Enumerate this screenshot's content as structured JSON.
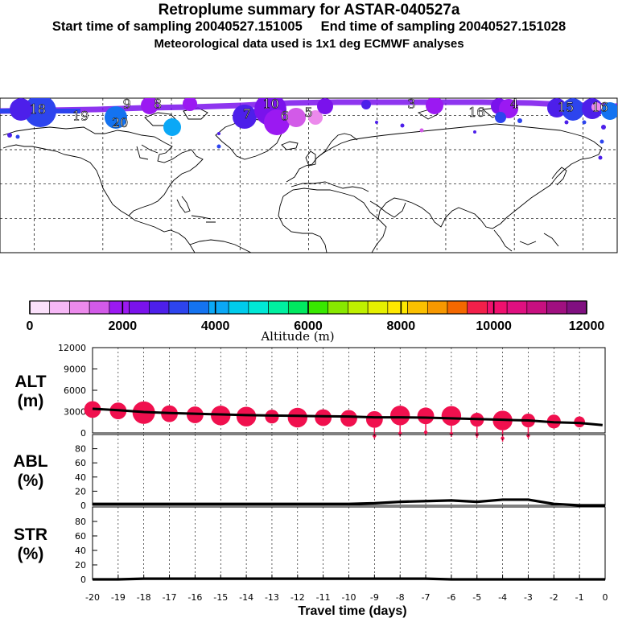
{
  "header": {
    "title": "Retroplume summary for ASTAR-040527a",
    "start_label": "Start time of sampling 20040527.151005",
    "end_label": "End time of sampling 20040527.151028",
    "met_label": "Meteorological data used is 1x1 deg ECMWF analyses"
  },
  "map": {
    "plume_labels": [
      {
        "text": "18",
        "lon": -158,
        "lat": 84
      },
      {
        "text": "19",
        "lon": -133,
        "lat": 80
      },
      {
        "text": "20",
        "lon": -110,
        "lat": 76
      },
      {
        "text": "9",
        "lon": -106,
        "lat": 87
      },
      {
        "text": "8",
        "lon": -88,
        "lat": 87
      },
      {
        "text": "7",
        "lon": -36,
        "lat": 81
      },
      {
        "text": "10",
        "lon": -22,
        "lat": 87
      },
      {
        "text": "6",
        "lon": -14,
        "lat": 80
      },
      {
        "text": "5",
        "lon": 0,
        "lat": 82
      },
      {
        "text": "3",
        "lon": 60,
        "lat": 87
      },
      {
        "text": "16",
        "lon": 98,
        "lat": 82
      },
      {
        "text": "4",
        "lon": 120,
        "lat": 87
      },
      {
        "text": "15",
        "lon": 150,
        "lat": 85
      },
      {
        "text": "16",
        "lon": 170,
        "lat": 85
      }
    ]
  },
  "colorbar": {
    "tick_labels": [
      "0",
      "2000",
      "4000",
      "6000",
      "8000",
      "10000",
      "12000"
    ],
    "axis_label": "Altitude (m)",
    "colors": [
      "#fbe1fb",
      "#f6b8f6",
      "#ec8aec",
      "#d25ae8",
      "#9b19f2",
      "#7a12ec",
      "#4d1fea",
      "#2d44ee",
      "#1473f0",
      "#0ba8f6",
      "#00ccec",
      "#00e8d6",
      "#00f0a0",
      "#00e860",
      "#38e800",
      "#88e800",
      "#bff000",
      "#e6f000",
      "#ffe800",
      "#fbc000",
      "#f79800",
      "#f46800",
      "#f2204a",
      "#f0106e",
      "#e01080",
      "#c81080",
      "#a01080",
      "#801080"
    ]
  },
  "x_axis": {
    "label": "Travel time (days)",
    "tick_labels": [
      "-20",
      "-19",
      "-18",
      "-17",
      "-16",
      "-15",
      "-14",
      "-13",
      "-12",
      "-11",
      "-10",
      "-9",
      "-8",
      "-7",
      "-6",
      "-5",
      "-4",
      "-3",
      "-2",
      "-1",
      "0"
    ]
  },
  "chart_data": [
    {
      "type": "line",
      "name": "ALT",
      "ylabel": "ALT (m)",
      "ylabel_lines": [
        "ALT",
        "(m)"
      ],
      "ylim": [
        0,
        12000
      ],
      "yticks": [
        "0",
        "3000",
        "6000",
        "9000",
        "12000"
      ],
      "x": [
        -20,
        -19,
        -18,
        -17,
        -16,
        -15,
        -14,
        -13,
        -12,
        -11,
        -10,
        -9,
        -8,
        -7,
        -6,
        -5,
        -4,
        -3,
        -2,
        -1,
        -0.1
      ],
      "values": [
        3400,
        3200,
        2950,
        2800,
        2700,
        2600,
        2500,
        2450,
        2400,
        2350,
        2300,
        2200,
        2200,
        2150,
        2050,
        1950,
        1850,
        1750,
        1500,
        1400,
        1100
      ],
      "markers": {
        "x": [
          -20,
          -19,
          -18,
          -17,
          -16,
          -15,
          -14,
          -13,
          -12,
          -11,
          -10,
          -9,
          -8,
          -7,
          -6,
          -5,
          -4,
          -3,
          -2,
          -1
        ],
        "values": [
          3300,
          3100,
          2850,
          2700,
          2550,
          2450,
          2300,
          2300,
          2150,
          2150,
          2050,
          1900,
          2450,
          2400,
          2400,
          1850,
          1750,
          1750,
          1600,
          1550
        ],
        "size_rank": [
          3,
          3,
          5,
          3,
          3,
          4,
          4,
          2,
          4,
          3,
          3,
          3,
          4,
          3,
          4,
          2,
          4,
          2,
          2,
          1
        ],
        "spread": [
          0,
          0,
          0,
          0,
          0,
          0,
          0,
          0,
          0,
          0,
          0,
          1,
          1,
          1,
          1,
          1,
          1,
          1,
          0,
          0
        ]
      }
    },
    {
      "type": "line",
      "name": "ABL",
      "ylabel": "ABL (%)",
      "ylabel_lines": [
        "ABL",
        "(%)"
      ],
      "ylim": [
        0,
        100
      ],
      "yticks": [
        "0",
        "20",
        "40",
        "60",
        "80"
      ],
      "x": [
        -20,
        -19,
        -18,
        -17,
        -16,
        -15,
        -14,
        -13,
        -12,
        -11,
        -10,
        -9,
        -8,
        -7,
        -6,
        -5,
        -4,
        -3,
        -2,
        -1,
        0
      ],
      "values": [
        2,
        2,
        2,
        2,
        2,
        2,
        2,
        2,
        2,
        2,
        2,
        3,
        5,
        6,
        7,
        5,
        8,
        8,
        2,
        0,
        0
      ]
    },
    {
      "type": "line",
      "name": "STR",
      "ylabel": "STR (%)",
      "ylabel_lines": [
        "STR",
        "(%)"
      ],
      "ylim": [
        0,
        100
      ],
      "yticks": [
        "0",
        "20",
        "40",
        "60",
        "80"
      ],
      "x": [
        -20,
        -19,
        -18,
        -17,
        -16,
        -15,
        -14,
        -13,
        -12,
        -11,
        -10,
        -9,
        -8,
        -7,
        -6,
        -5,
        -4,
        -3,
        -2,
        -1,
        0
      ],
      "values": [
        0,
        0,
        1,
        1,
        1,
        1,
        1,
        1,
        1,
        1,
        1,
        1,
        1,
        1,
        0,
        0,
        0,
        0,
        0,
        0,
        0
      ]
    }
  ]
}
